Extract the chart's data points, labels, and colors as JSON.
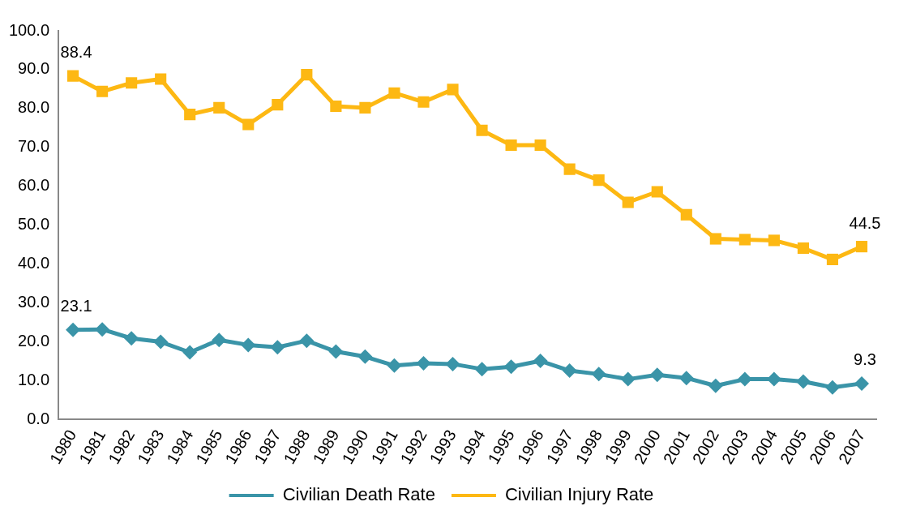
{
  "chart_data": {
    "type": "line",
    "categories": [
      "1980",
      "1981",
      "1982",
      "1983",
      "1984",
      "1985",
      "1986",
      "1987",
      "1988",
      "1989",
      "1990",
      "1991",
      "1992",
      "1993",
      "1994",
      "1995",
      "1996",
      "1997",
      "1998",
      "1999",
      "2000",
      "2001",
      "2002",
      "2003",
      "2004",
      "2005",
      "2006",
      "2007"
    ],
    "series": [
      {
        "name": "Civilian Death Rate",
        "color": "#3a94a8",
        "marker": "diamond",
        "values": [
          23.1,
          23.2,
          20.9,
          20.0,
          17.3,
          20.5,
          19.2,
          18.6,
          20.3,
          17.5,
          16.2,
          13.9,
          14.5,
          14.3,
          13.0,
          13.6,
          15.1,
          12.6,
          11.7,
          10.4,
          11.5,
          10.7,
          8.7,
          10.4,
          10.4,
          9.8,
          8.3,
          9.3
        ],
        "value_labels": [
          "23.1",
          null,
          null,
          null,
          null,
          null,
          null,
          null,
          null,
          null,
          null,
          null,
          null,
          null,
          null,
          null,
          null,
          null,
          null,
          null,
          null,
          null,
          null,
          null,
          null,
          null,
          null,
          "9.3"
        ]
      },
      {
        "name": "Civilian Injury Rate",
        "color": "#fdb813",
        "marker": "square",
        "values": [
          88.4,
          84.4,
          86.6,
          87.6,
          78.5,
          80.2,
          75.9,
          81.0,
          88.7,
          80.6,
          80.2,
          84.0,
          81.7,
          84.9,
          74.4,
          70.6,
          70.6,
          64.4,
          61.6,
          55.9,
          58.6,
          52.7,
          46.5,
          46.3,
          46.1,
          44.1,
          41.2,
          44.5
        ],
        "value_labels": [
          "88.4",
          null,
          null,
          null,
          null,
          null,
          null,
          null,
          null,
          null,
          null,
          null,
          null,
          null,
          null,
          null,
          null,
          null,
          null,
          null,
          null,
          null,
          null,
          null,
          null,
          null,
          null,
          "44.5"
        ]
      }
    ],
    "ylim": [
      0,
      100
    ],
    "yticks": [
      {
        "value": 0,
        "label": "0.0"
      },
      {
        "value": 10,
        "label": "10.0"
      },
      {
        "value": 20,
        "label": "20.0"
      },
      {
        "value": 30,
        "label": "30.0"
      },
      {
        "value": 40,
        "label": "40.0"
      },
      {
        "value": 50,
        "label": "50.0"
      },
      {
        "value": 60,
        "label": "60.0"
      },
      {
        "value": 70,
        "label": "70.0"
      },
      {
        "value": 80,
        "label": "80.0"
      },
      {
        "value": 90,
        "label": "90.0"
      },
      {
        "value": 100,
        "label": "100.0"
      }
    ],
    "grid": false,
    "legend": "bottom",
    "line_style": "solid"
  }
}
